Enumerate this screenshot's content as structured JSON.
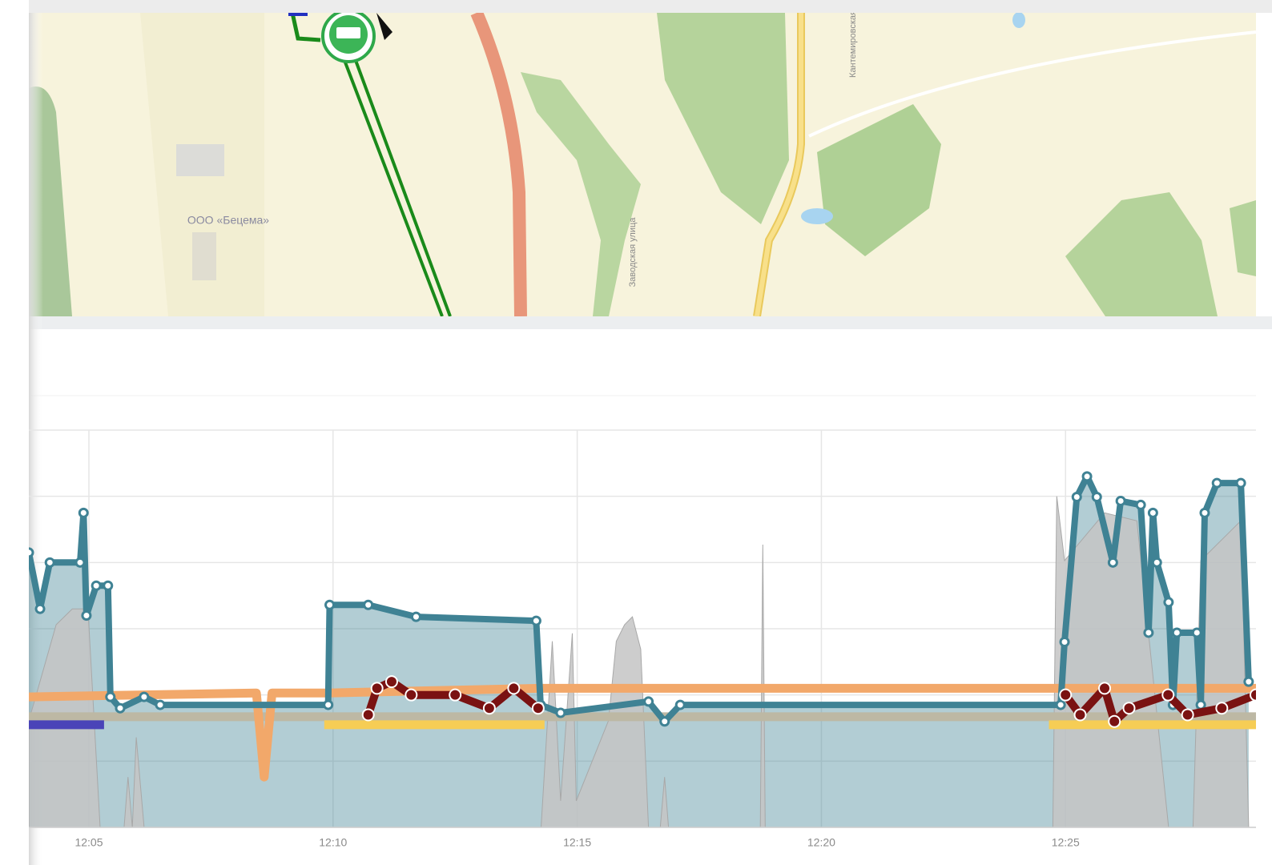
{
  "map": {
    "labels": [
      "ООО «Бецема»",
      "Заводская улица",
      "Кантемировская"
    ]
  },
  "chart_data": {
    "type": "line",
    "xlim": [
      723.77,
      748.9
    ],
    "ylim": [
      0,
      6
    ],
    "yticks": [
      0,
      1,
      2,
      3,
      4,
      5,
      6
    ],
    "grid": true,
    "xticks": [
      {
        "value": 725,
        "label": "12:05"
      },
      {
        "value": 730,
        "label": "12:10"
      },
      {
        "value": 735,
        "label": "12:15"
      },
      {
        "value": 740,
        "label": "12:20"
      },
      {
        "value": 745,
        "label": "12:25"
      }
    ],
    "series": [
      {
        "color": "#c4c4c4",
        "style": "area",
        "x": [
          723.77,
          724.33,
          724.66,
          724.98,
          725.23,
          725.72,
          725.8,
          725.89,
          725.97,
          726.13,
          734.26,
          734.49,
          734.66,
          734.9,
          734.98,
          735.64,
          735.8,
          735.97,
          736.13,
          736.3,
          736.46,
          736.7,
          736.79,
          736.87,
          738.75,
          738.8,
          738.85,
          744.74,
          744.82,
          744.98,
          745.8,
          746.46,
          747.11,
          747.61,
          747.77,
          748.59,
          748.75
        ],
        "values": [
          1.61,
          3.06,
          3.3,
          3.3,
          0,
          0,
          0.76,
          0,
          1.36,
          0,
          0,
          2.81,
          0.4,
          2.93,
          0.4,
          1.61,
          2.81,
          3.06,
          3.18,
          2.69,
          0,
          0,
          0.76,
          0,
          0,
          4.27,
          0,
          0,
          5.0,
          4.03,
          4.75,
          4.63,
          0,
          0,
          4.03,
          4.63,
          0
        ]
      },
      {
        "color": "#bdb8a4",
        "style": "band",
        "x": [
          723.77,
          748.9
        ],
        "values": [
          1.67,
          1.67
        ]
      },
      {
        "color": "#f2a86a",
        "style": "band",
        "x": [
          723.77,
          728.43,
          728.59,
          728.75,
          729.9,
          734.25,
          748.9
        ],
        "values": [
          1.97,
          2.03,
          0.76,
          2.03,
          2.03,
          2.1,
          2.1
        ]
      },
      {
        "color": "#f6cd55",
        "style": "band",
        "x": [
          729.82,
          734.33,
          740,
          744.66,
          748.9
        ],
        "values": [
          1.55,
          1.55,
          null,
          1.55,
          1.55
        ]
      },
      {
        "color": "#4a44b8",
        "style": "band",
        "x": [
          723.77,
          725.31
        ],
        "values": [
          1.55,
          1.55
        ]
      },
      {
        "color": "#3f8294",
        "style": "line",
        "x": [
          723.77,
          724.0,
          724.2,
          724.82,
          724.89,
          724.95,
          725.15,
          725.39,
          725.44,
          725.64,
          726.13,
          726.46,
          729.9,
          729.93,
          730.72,
          731.7,
          734.16,
          734.25,
          734.66,
          736.46,
          736.79,
          737.11,
          744.9,
          744.98,
          745.23,
          745.44,
          745.64,
          745.97,
          746.13,
          746.54,
          746.7,
          746.79,
          746.87,
          747.11,
          747.2,
          747.28,
          747.69,
          747.77,
          747.85,
          748.1,
          748.59,
          748.75
        ],
        "values": [
          4.15,
          3.3,
          4.0,
          4.0,
          4.75,
          3.2,
          3.65,
          3.65,
          1.97,
          1.8,
          1.97,
          1.85,
          1.85,
          3.36,
          3.36,
          3.18,
          3.12,
          1.85,
          1.73,
          1.9,
          1.6,
          1.85,
          1.85,
          2.8,
          4.99,
          5.3,
          4.99,
          4.0,
          4.93,
          4.87,
          2.94,
          4.75,
          4.0,
          3.4,
          1.85,
          2.94,
          2.94,
          1.85,
          4.75,
          5.2,
          5.2,
          2.2
        ]
      },
      {
        "color": "#7a1212",
        "style": "dots",
        "x": [
          730.72,
          730.9,
          731.2,
          731.6,
          732.5,
          733.2,
          733.7,
          734.2,
          740,
          745.0,
          745.3,
          745.8,
          746.0,
          746.3,
          747.1,
          747.5,
          748.2,
          748.9
        ],
        "values": [
          1.7,
          2.1,
          2.2,
          2.0,
          2.0,
          1.8,
          2.1,
          1.8,
          null,
          2.0,
          1.7,
          2.1,
          1.6,
          1.8,
          2.0,
          1.7,
          1.8,
          2.0
        ]
      }
    ]
  }
}
